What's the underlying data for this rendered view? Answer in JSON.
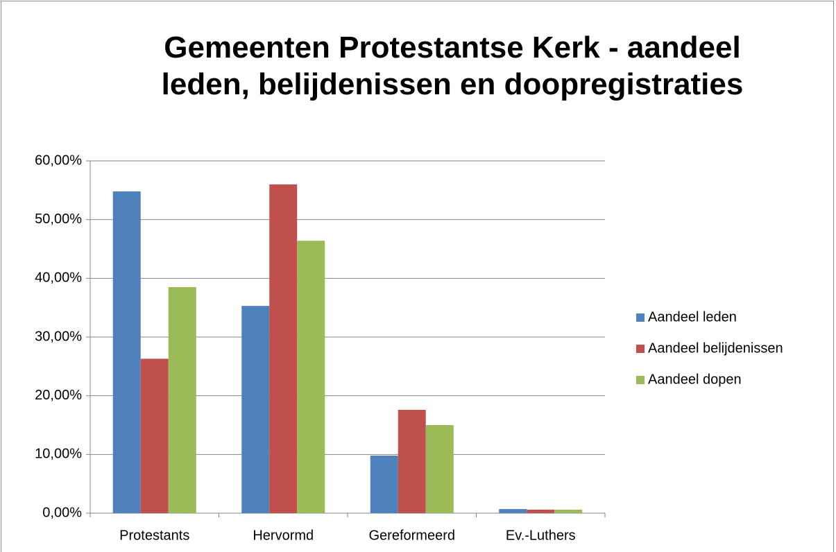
{
  "chart_data": {
    "type": "bar",
    "title": "Gemeenten Protestantse Kerk - aandeel leden, belijdenissen en doopregistraties",
    "categories": [
      "Protestants",
      "Hervormd",
      "Gereformeerd",
      "Ev.-Luthers"
    ],
    "series": [
      {
        "name": "Aandeel leden",
        "color": "#4f81bd",
        "values": [
          54.8,
          35.3,
          9.8,
          0.7
        ]
      },
      {
        "name": "Aandeel belijdenissen",
        "color": "#c0504d",
        "values": [
          26.3,
          56.0,
          17.6,
          0.6
        ]
      },
      {
        "name": "Aandeel dopen",
        "color": "#9bbb59",
        "values": [
          38.5,
          46.4,
          15.0,
          0.6
        ]
      }
    ],
    "ylim": [
      0,
      60
    ],
    "yticks": [
      {
        "value": 0,
        "label": "0,00%"
      },
      {
        "value": 10,
        "label": "10,00%"
      },
      {
        "value": 20,
        "label": "20,00%"
      },
      {
        "value": 30,
        "label": "30,00%"
      },
      {
        "value": 40,
        "label": "40,00%"
      },
      {
        "value": 50,
        "label": "50,00%"
      },
      {
        "value": 60,
        "label": "60,00%"
      }
    ],
    "grid": true,
    "legend": "right"
  }
}
